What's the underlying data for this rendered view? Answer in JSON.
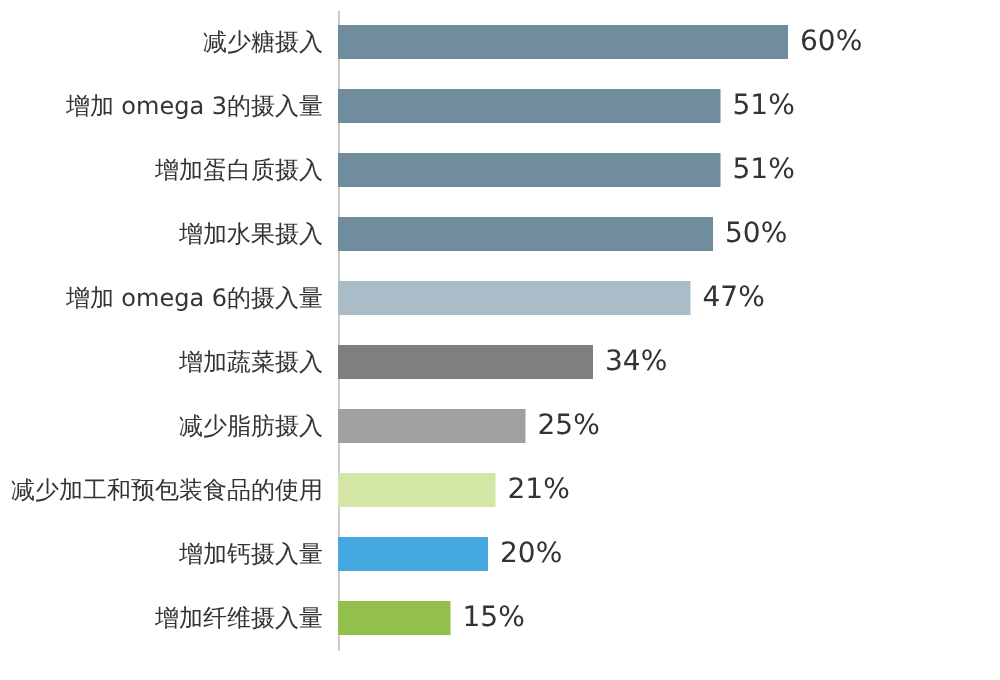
{
  "chart_data": {
    "type": "bar",
    "orientation": "horizontal",
    "categories": [
      "减少糖摄入",
      "增加 omega 3的摄入量",
      "增加蛋白质摄入",
      "增加水果摄入",
      "增加 omega 6的摄入量",
      "增加蔬菜摄入",
      "减少脂肪摄入",
      "减少加工和预包装食品的使用",
      "增加钙摄入量",
      "增加纤维摄入量"
    ],
    "values": [
      60,
      51,
      51,
      50,
      47,
      34,
      25,
      21,
      20,
      15
    ],
    "value_labels": [
      "60%",
      "51%",
      "51%",
      "50%",
      "47%",
      "34%",
      "25%",
      "21%",
      "20%",
      "15%"
    ],
    "colors": [
      "#6f8d9c",
      "#6f8d9c",
      "#6f8d9c",
      "#6f8d9c",
      "#a9bcc8",
      "#7f7f7f",
      "#a0a0a0",
      "#d4e6a5",
      "#45a8e0",
      "#92c04a"
    ],
    "grid": false
  }
}
